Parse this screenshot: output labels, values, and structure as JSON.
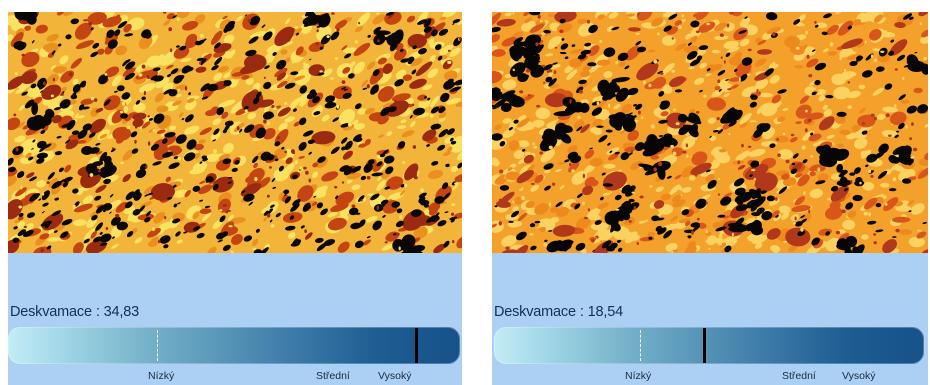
{
  "panels": [
    {
      "texture": {
        "palette": {
          "base": "#f2b53a",
          "light": "#fbe160",
          "mid": "#e9901e",
          "dark": "#c44512",
          "deep": "#9a2a10",
          "void": "#0b0704"
        }
      },
      "metric": {
        "label": "Deskvamace",
        "separator": ":",
        "value": "34,83"
      },
      "scale": {
        "threshold_fraction": 0.33,
        "level_fraction": 0.9,
        "labels": {
          "low": "Nízký",
          "mid": "Střední",
          "high": "Vysoký"
        }
      }
    },
    {
      "texture": {
        "palette": {
          "base": "#f4a12c",
          "light": "#fbd260",
          "mid": "#ee8a1d",
          "dark": "#d8561a",
          "deep": "#b1381a",
          "void": "#070503"
        }
      },
      "metric": {
        "label": "Deskvamace",
        "separator": ":",
        "value": "18,54"
      },
      "scale": {
        "threshold_fraction": 0.34,
        "level_fraction": 0.485,
        "labels": {
          "low": "Nízký",
          "mid": "Střední",
          "high": "Vysoký"
        }
      }
    }
  ]
}
